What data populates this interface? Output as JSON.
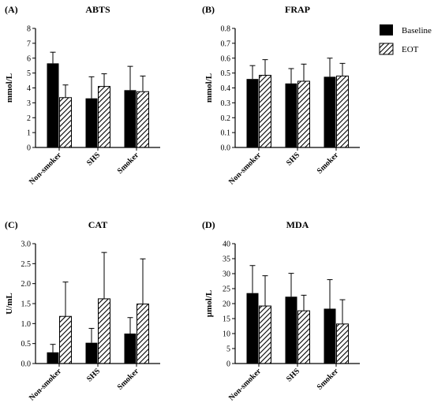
{
  "legend": {
    "position": "top-right",
    "items": [
      {
        "key": "baseline",
        "label": "Baseline",
        "fill": "solid-black"
      },
      {
        "key": "eot",
        "label": "EOT",
        "fill": "diagonal-hatch"
      }
    ]
  },
  "colors": {
    "bar": "#000000",
    "hatch_bg": "#ffffff",
    "axis": "#000000"
  },
  "chart_data": [
    {
      "type": "bar",
      "panel_label": "(A)",
      "title": "ABTS",
      "xlabel": "",
      "ylabel": "mmol/L",
      "ylim": [
        0,
        8
      ],
      "yticks": [
        0,
        1,
        2,
        3,
        4,
        5,
        6,
        7,
        8
      ],
      "ytick_labels": [
        "0",
        "1",
        "2",
        "3",
        "4",
        "5",
        "6",
        "7",
        "8"
      ],
      "categories": [
        "Non-smoker",
        "SHS",
        "Smoker"
      ],
      "series": [
        {
          "name": "Baseline",
          "values": [
            5.65,
            3.3,
            3.85
          ],
          "errors": [
            0.75,
            1.45,
            1.6
          ]
        },
        {
          "name": "EOT",
          "values": [
            3.35,
            4.1,
            3.75
          ],
          "errors": [
            0.85,
            0.85,
            1.05
          ]
        }
      ],
      "grid": false
    },
    {
      "type": "bar",
      "panel_label": "(B)",
      "title": "FRAP",
      "xlabel": "",
      "ylabel": "mmol/L",
      "ylim": [
        0,
        0.8
      ],
      "yticks": [
        0,
        0.1,
        0.2,
        0.3,
        0.4,
        0.5,
        0.6,
        0.7,
        0.8
      ],
      "ytick_labels": [
        "0.0",
        "0.1",
        "0.2",
        "0.3",
        "0.4",
        "0.5",
        "0.6",
        "0.7",
        "0.8"
      ],
      "categories": [
        "Non-smoker",
        "SHS",
        "Smoker"
      ],
      "series": [
        {
          "name": "Baseline",
          "values": [
            0.46,
            0.43,
            0.475
          ],
          "errors": [
            0.09,
            0.1,
            0.125
          ]
        },
        {
          "name": "EOT",
          "values": [
            0.485,
            0.445,
            0.48
          ],
          "errors": [
            0.105,
            0.115,
            0.085
          ]
        }
      ],
      "grid": false
    },
    {
      "type": "bar",
      "panel_label": "(C)",
      "title": "CAT",
      "xlabel": "",
      "ylabel": "U/mL",
      "ylim": [
        0,
        3.0
      ],
      "yticks": [
        0,
        0.5,
        1.0,
        1.5,
        2.0,
        2.5,
        3.0
      ],
      "ytick_labels": [
        "0.0",
        "0.5",
        "1.0",
        "1.5",
        "2.0",
        "2.5",
        "3.0"
      ],
      "categories": [
        "Non-smoker",
        "SHS",
        "Smoker"
      ],
      "series": [
        {
          "name": "Baseline",
          "values": [
            0.28,
            0.52,
            0.75
          ],
          "errors": [
            0.2,
            0.36,
            0.4
          ]
        },
        {
          "name": "EOT",
          "values": [
            1.18,
            1.62,
            1.49
          ],
          "errors": [
            0.86,
            1.16,
            1.13
          ]
        }
      ],
      "grid": false
    },
    {
      "type": "bar",
      "panel_label": "(D)",
      "title": "MDA",
      "xlabel": "",
      "ylabel": "µmol/L",
      "ylim": [
        0,
        40
      ],
      "yticks": [
        0,
        5,
        10,
        15,
        20,
        25,
        30,
        35,
        40
      ],
      "ytick_labels": [
        "0",
        "5",
        "10",
        "15",
        "20",
        "25",
        "30",
        "35",
        "40"
      ],
      "categories": [
        "Non-smoker",
        "SHS",
        "Smoker"
      ],
      "series": [
        {
          "name": "Baseline",
          "values": [
            23.5,
            22.3,
            18.3
          ],
          "errors": [
            9.2,
            7.8,
            9.7
          ]
        },
        {
          "name": "EOT",
          "values": [
            19.2,
            17.6,
            13.2
          ],
          "errors": [
            10.1,
            5.2,
            8.1
          ]
        }
      ],
      "grid": false
    }
  ]
}
